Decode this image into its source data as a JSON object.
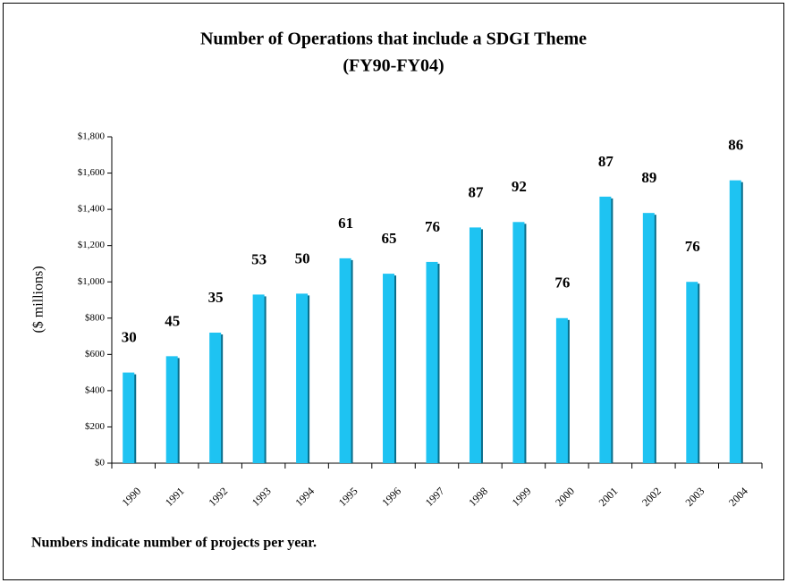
{
  "chart_data": {
    "type": "bar",
    "title": "Number of Operations that include a SDGI Theme",
    "subtitle": "(FY90-FY04)",
    "y_label": "($ millions)",
    "note": "Numbers indicate number of projects per year.",
    "categories": [
      "1990",
      "1991",
      "1992",
      "1993",
      "1994",
      "1995",
      "1996",
      "1997",
      "1998",
      "1999",
      "2000",
      "2001",
      "2002",
      "2003",
      "2004"
    ],
    "values": [
      500,
      590,
      720,
      930,
      935,
      1130,
      1045,
      1110,
      1300,
      1330,
      800,
      1470,
      1380,
      1000,
      1560
    ],
    "project_counts": [
      30,
      45,
      35,
      53,
      50,
      61,
      65,
      76,
      87,
      92,
      76,
      87,
      89,
      76,
      86
    ],
    "color": "#1ec3f2",
    "ylim": [
      0,
      1800
    ],
    "yticks": [
      {
        "value": 0,
        "label": "$0"
      },
      {
        "value": 200,
        "label": "$200"
      },
      {
        "value": 400,
        "label": "$400"
      },
      {
        "value": 600,
        "label": "$600"
      },
      {
        "value": 800,
        "label": "$800"
      },
      {
        "value": 1000,
        "label": "$1,000"
      },
      {
        "value": 1200,
        "label": "$1,200"
      },
      {
        "value": 1400,
        "label": "$1,400"
      },
      {
        "value": 1600,
        "label": "$1,600"
      },
      {
        "value": 1800,
        "label": "$1,800"
      }
    ],
    "grid": false
  }
}
